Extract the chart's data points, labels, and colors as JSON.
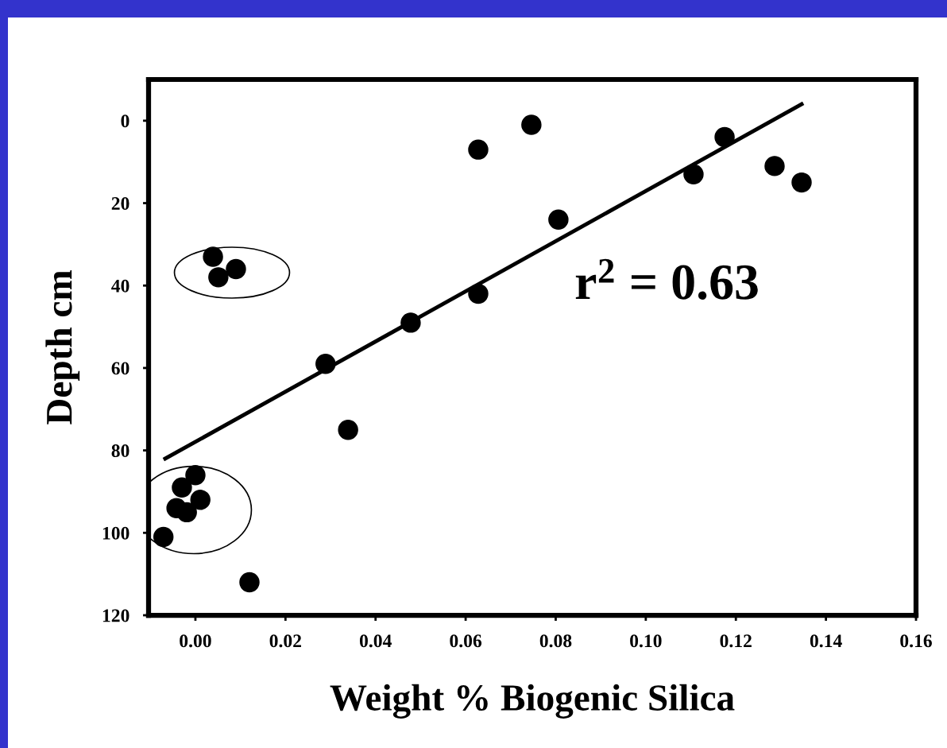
{
  "chart_data": {
    "type": "scatter",
    "xlabel": "Weight % Biogenic Silica",
    "ylabel": "Depth cm",
    "annotations": [
      "r$^{2}$ = 0.63"
    ],
    "series": [
      {
        "color": "#000000",
        "marker": "circle",
        "x": [
          0.0746,
          0.0628,
          0.1175,
          0.1106,
          0.1286,
          0.1346,
          0.0806,
          0.0628,
          0.0478,
          0.0289,
          0.0339,
          0.0039,
          0.0051,
          0.009,
          0.0,
          -0.003,
          0.0011,
          -0.0042,
          -0.0019,
          -0.0071,
          0.012
        ],
        "values": [
          1,
          7,
          4,
          13,
          11,
          15,
          24,
          42,
          49,
          59,
          75,
          33,
          38,
          36,
          86,
          89,
          92,
          94,
          95,
          101,
          112
        ]
      },
      {
        "type": "line",
        "color": "#000000",
        "marker": "none",
        "line_style": "solid",
        "x": [
          -0.0067,
          0.1346
        ],
        "values": [
          82,
          -4
        ]
      }
    ],
    "xlim": [
      -0.0104,
      0.16
    ],
    "ylim": [
      120,
      -10
    ],
    "xticks": [
      {
        "value": 0,
        "label": "0.00"
      },
      {
        "value": 0.02,
        "label": "0.02"
      },
      {
        "value": 0.04,
        "label": "0.04"
      },
      {
        "value": 0.06,
        "label": "0.06"
      },
      {
        "value": 0.08,
        "label": "0.08"
      },
      {
        "value": 0.1,
        "label": "0.10"
      },
      {
        "value": 0.12,
        "label": "0.12"
      },
      {
        "value": 0.14,
        "label": "0.14"
      },
      {
        "value": 0.16,
        "label": "0.16"
      }
    ],
    "yticks": [
      0,
      20,
      40,
      60,
      80,
      100,
      120
    ],
    "grid": false,
    "legend": false
  }
}
